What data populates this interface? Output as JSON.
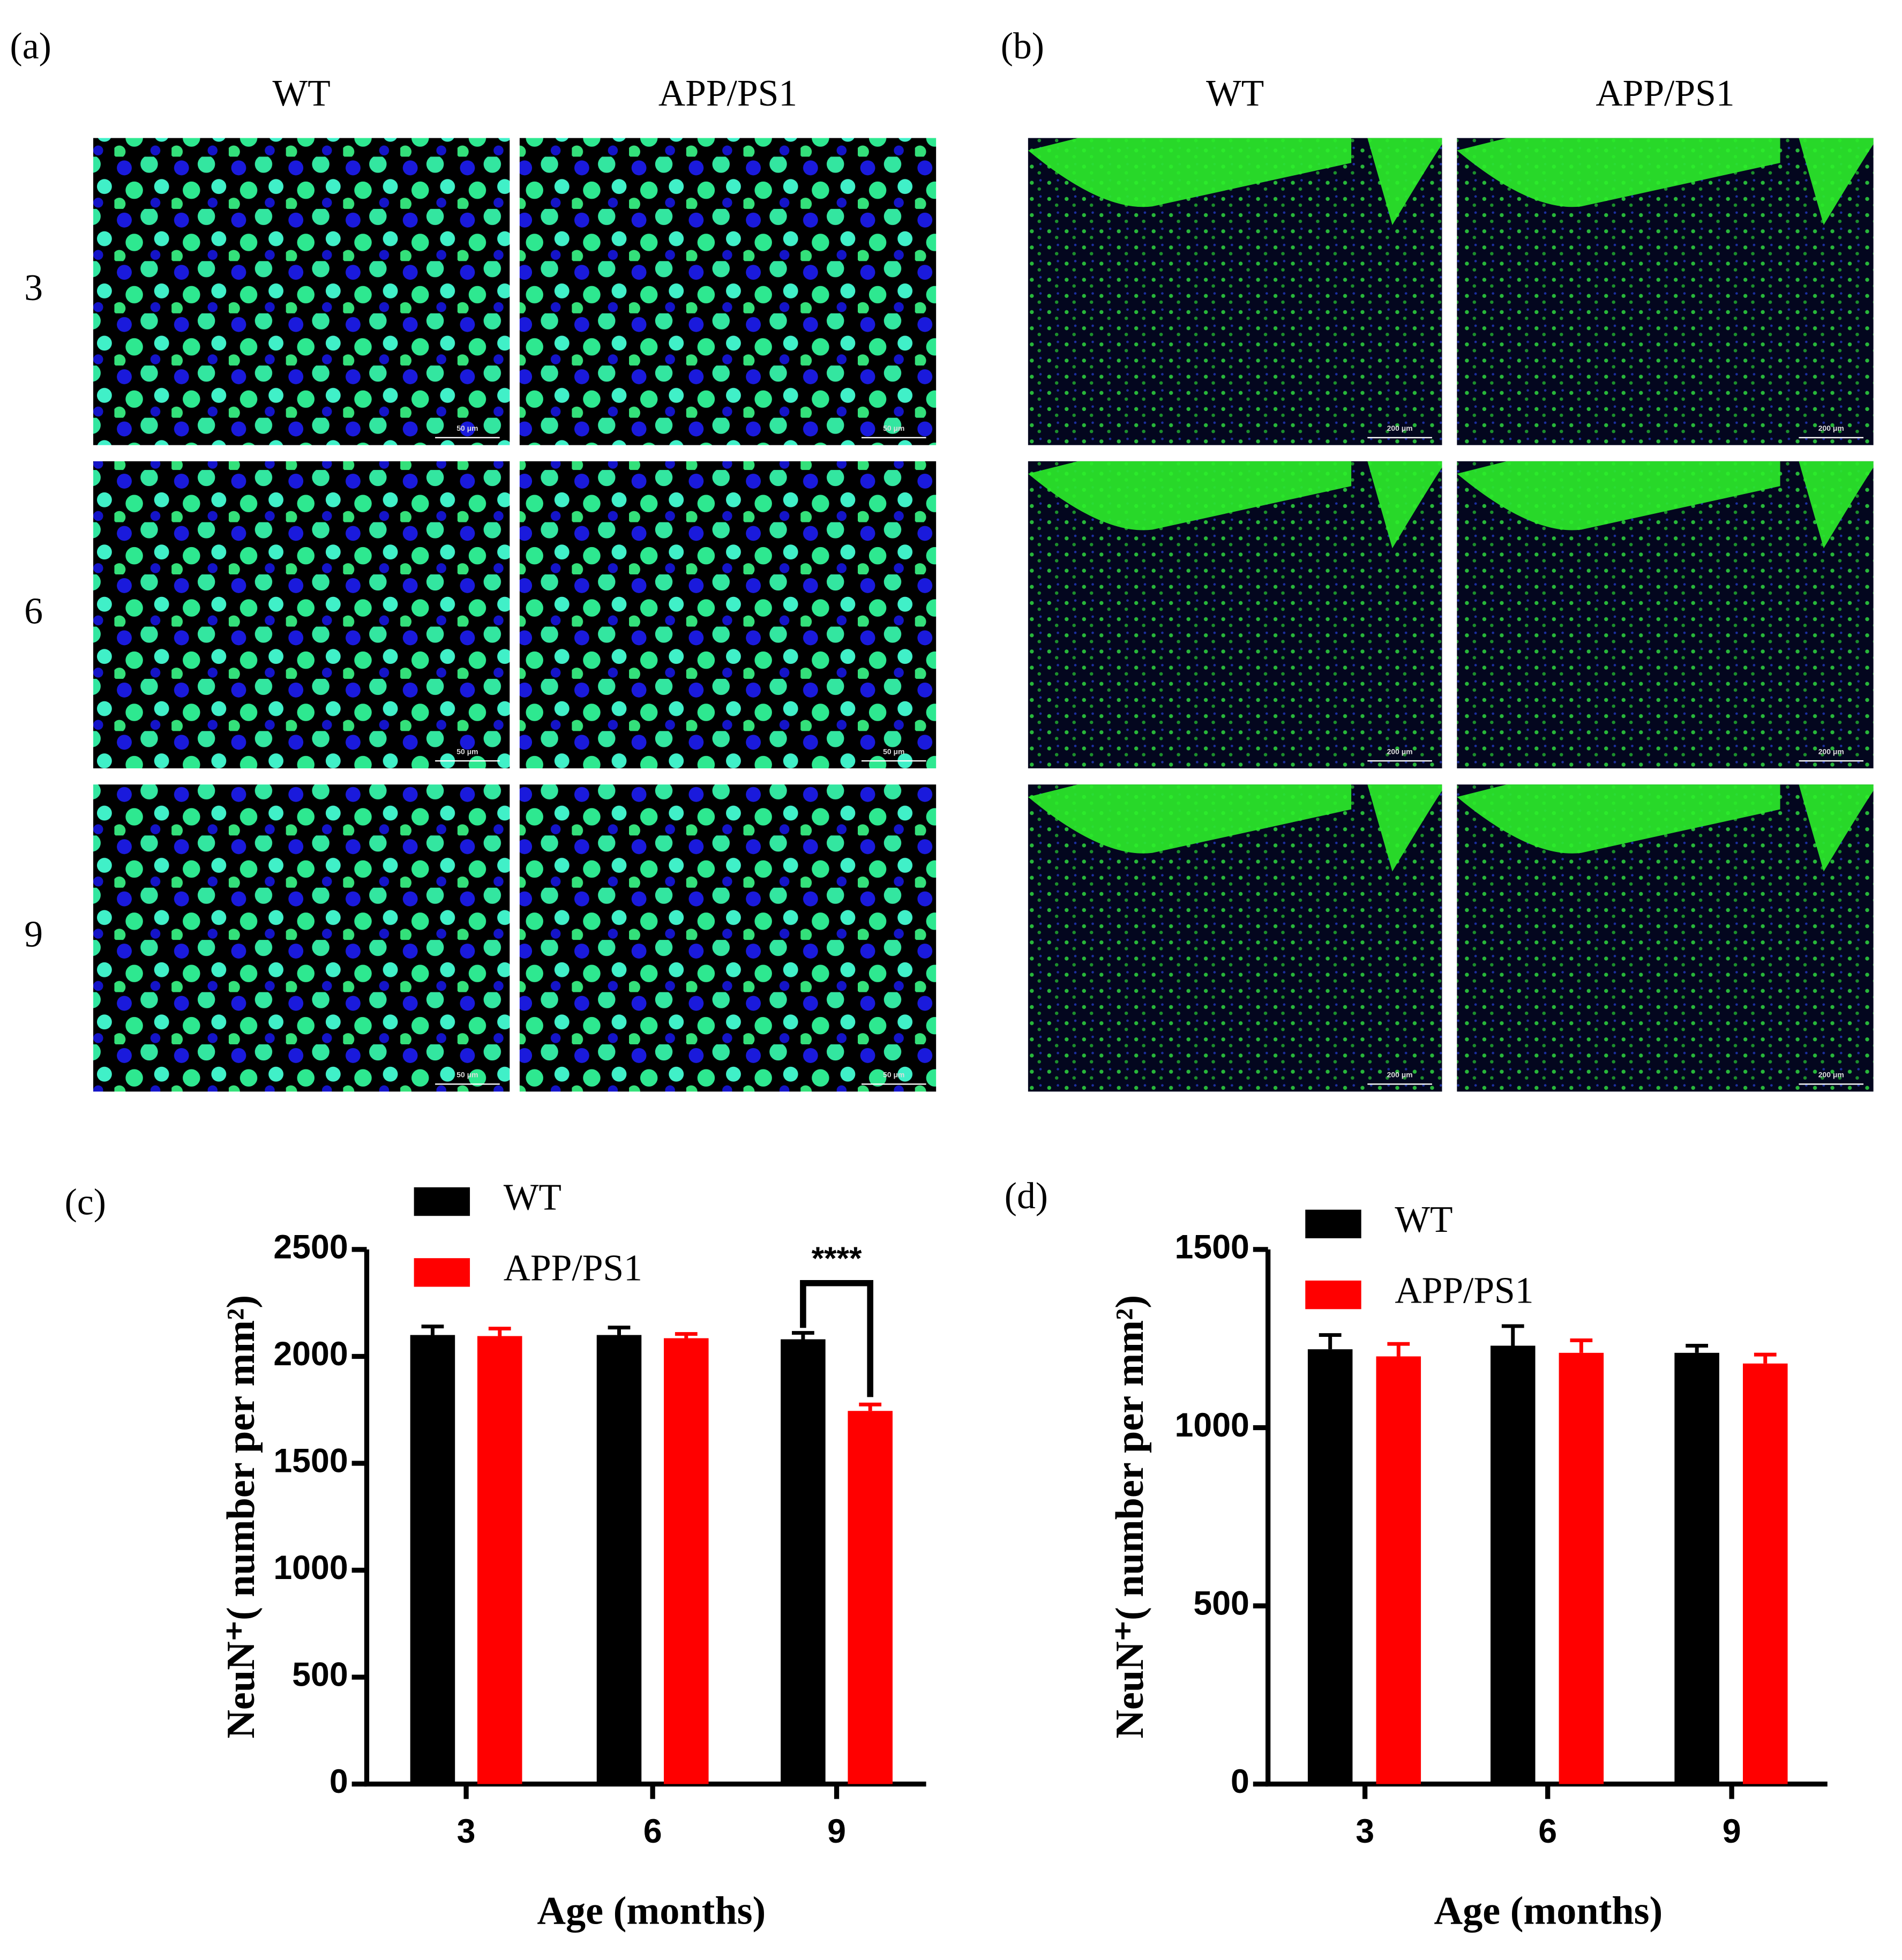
{
  "image_panels": [
    {
      "label": "(a)",
      "columns": [
        "WT",
        "APP/PS1"
      ],
      "rows": [
        "3",
        "6",
        "9"
      ],
      "scale_bar": "50 μm"
    },
    {
      "label": "(b)",
      "columns": [
        "WT",
        "APP/PS1"
      ],
      "rows": [
        "3",
        "6",
        "9"
      ],
      "scale_bar": "200 μm"
    }
  ],
  "chart_data": [
    {
      "type": "bar",
      "panel_label": "(c)",
      "x_label": "Age (months)",
      "y_label": "NeuN⁺( number per mm²)",
      "categories": [
        "3",
        "6",
        "9"
      ],
      "series": [
        {
          "name": "WT",
          "color": "#000000",
          "values": [
            2100,
            2100,
            2080
          ],
          "errors": [
            40,
            35,
            30
          ]
        },
        {
          "name": "APP/PS1",
          "color": "#ff0000",
          "values": [
            2095,
            2085,
            1745
          ],
          "errors": [
            35,
            20,
            30
          ]
        }
      ],
      "annotation": "****",
      "ylim": [
        0,
        2500
      ],
      "yticks": [
        0,
        500,
        1000,
        1500,
        2000,
        2500
      ]
    },
    {
      "type": "bar",
      "panel_label": "(d)",
      "x_label": "Age (months)",
      "y_label": "NeuN⁺( number per mm²)",
      "categories": [
        "3",
        "6",
        "9"
      ],
      "series": [
        {
          "name": "WT",
          "color": "#000000",
          "values": [
            1220,
            1230,
            1210
          ],
          "errors": [
            40,
            55,
            20
          ]
        },
        {
          "name": "APP/PS1",
          "color": "#ff0000",
          "values": [
            1200,
            1210,
            1180
          ],
          "errors": [
            35,
            35,
            25
          ]
        }
      ],
      "ylim": [
        0,
        1500
      ],
      "yticks": [
        0,
        500,
        1000,
        1500
      ]
    }
  ]
}
